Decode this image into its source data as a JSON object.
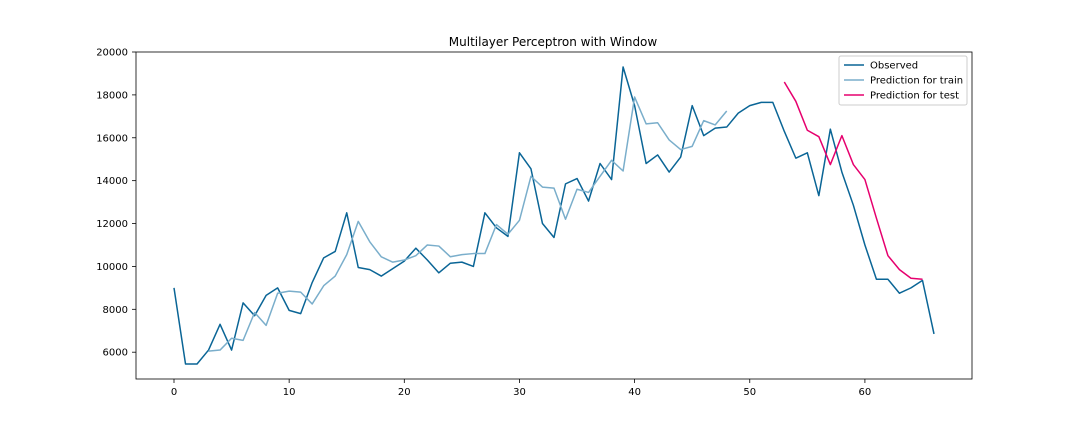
{
  "chart_data": {
    "type": "line",
    "title": "Multilayer Perceptron with Window",
    "xlabel": "",
    "ylabel": "",
    "xlim": [
      -3.3,
      69.3
    ],
    "ylim": [
      4750,
      20000
    ],
    "xticks": [
      0,
      10,
      20,
      30,
      40,
      50,
      60
    ],
    "yticks": [
      6000,
      8000,
      10000,
      12000,
      14000,
      16000,
      18000,
      20000
    ],
    "grid": false,
    "legend_position": "top-right",
    "series": [
      {
        "name": "Observed",
        "color": "#0a6596",
        "x_start": 0,
        "values": [
          9000,
          5450,
          5450,
          6100,
          7300,
          6100,
          8300,
          7700,
          8650,
          9000,
          7950,
          7800,
          9250,
          10400,
          10700,
          12500,
          9950,
          9850,
          9550,
          9900,
          10250,
          10850,
          10300,
          9700,
          10150,
          10200,
          10000,
          12500,
          11800,
          11400,
          15300,
          14550,
          12000,
          11350,
          13850,
          14100,
          13050,
          14800,
          14050,
          19300,
          17500,
          14800,
          15200,
          14400,
          15100,
          17500,
          16100,
          16450,
          16500,
          17150,
          17500,
          17650,
          17650,
          16300,
          15050,
          15300,
          13300,
          16400,
          14400,
          12850,
          11000,
          9400,
          9400,
          8750,
          9000,
          9350,
          6850
        ]
      },
      {
        "name": "Prediction for train",
        "color": "#7aaecb",
        "x_start": 3,
        "values": [
          6050,
          6100,
          6650,
          6550,
          7850,
          7250,
          8750,
          8850,
          8800,
          8250,
          9100,
          9550,
          10550,
          12100,
          11150,
          10450,
          10200,
          10300,
          10500,
          11000,
          10950,
          10450,
          10550,
          10600,
          10600,
          11950,
          11500,
          12150,
          14200,
          13700,
          13650,
          12200,
          13600,
          13450,
          14200,
          14950,
          14450,
          17900,
          16650,
          16700,
          15900,
          15450,
          15600,
          16800,
          16600,
          17250
        ]
      },
      {
        "name": "Prediction for test",
        "color": "#e6006e",
        "x_start": 53,
        "values": [
          18600,
          17700,
          16350,
          16050,
          14750,
          16100,
          14750,
          14050,
          12250,
          10500,
          9850,
          9450,
          9400
        ]
      }
    ]
  }
}
